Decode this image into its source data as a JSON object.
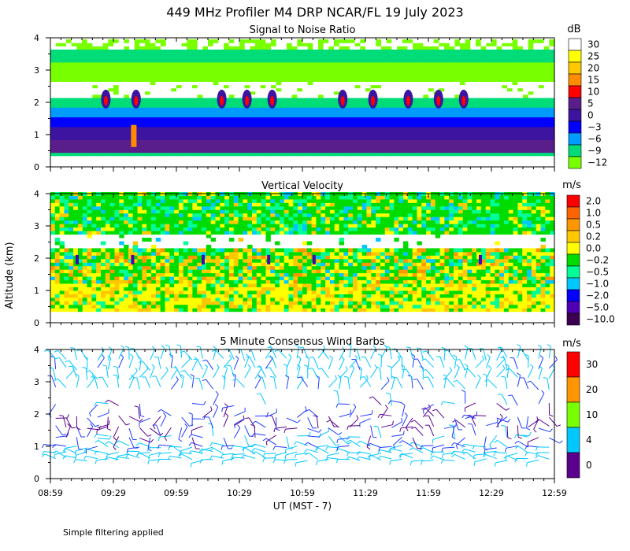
{
  "header": {
    "title": "449 MHz Profiler M4 DRP NCAR/FL 19 July 2023"
  },
  "ylabel": "Altitude (km)",
  "xlabel": "UT  (MST - 7)",
  "footer": "Simple filtering applied",
  "chart_data": [
    {
      "type": "heatmap",
      "title": "Signal to Noise Ratio",
      "unit": "dB",
      "ylim": [
        0,
        4
      ],
      "yticks": [
        "0",
        "1",
        "2",
        "3",
        "4"
      ],
      "xlim": [
        "08:59",
        "12:59"
      ],
      "xticks": [
        "08:59",
        "09:29",
        "09:59",
        "10:29",
        "10:59",
        "11:29",
        "11:59",
        "12:29",
        "12:59"
      ],
      "scale": {
        "labels": [
          "30",
          "25",
          "20",
          "15",
          "10",
          "5",
          "0",
          "−3",
          "−6",
          "−9",
          "−12"
        ],
        "colors": [
          "#ffffff",
          "#ffff00",
          "#ffc800",
          "#ff8c00",
          "#ff0000",
          "#5a1e8c",
          "#3c14a0",
          "#0000ff",
          "#009bff",
          "#00dc78",
          "#78ff00"
        ]
      },
      "profile": [
        {
          "altitude_km": 0.5,
          "value_db": 5
        },
        {
          "altitude_km": 0.8,
          "value_db": 3
        },
        {
          "altitude_km": 1.1,
          "value_db": 0
        },
        {
          "altitude_km": 1.4,
          "value_db": -3
        },
        {
          "altitude_km": 1.7,
          "value_db": -6
        },
        {
          "altitude_km": 2.0,
          "value_db": -9
        },
        {
          "altitude_km": 2.4,
          "value_db": 30
        },
        {
          "altitude_km": 3.0,
          "value_db": -12
        },
        {
          "altitude_km": 3.5,
          "value_db": -9
        },
        {
          "altitude_km": 3.9,
          "value_db": 30
        }
      ]
    },
    {
      "type": "heatmap",
      "title": "Vertical Velocity",
      "unit": "m/s",
      "ylim": [
        0,
        4
      ],
      "yticks": [
        "0",
        "1",
        "2",
        "3",
        "4"
      ],
      "xlim": [
        "08:59",
        "12:59"
      ],
      "scale": {
        "labels": [
          "2.0",
          "1.0",
          "0.5",
          "0.2",
          "0.0",
          "−0.2",
          "−0.5",
          "−1.0",
          "−2.0",
          "−5.0",
          "−10.0"
        ],
        "colors": [
          "#ff0000",
          "#ff6400",
          "#ff9600",
          "#ffc800",
          "#ffff00",
          "#00dc00",
          "#00ff96",
          "#00c8ff",
          "#0000ff",
          "#5000b4",
          "#3c0050"
        ]
      },
      "profile": [
        {
          "altitude_km": 0.7,
          "value_ms": 0.0
        },
        {
          "altitude_km": 1.2,
          "value_ms": 0.0
        },
        {
          "altitude_km": 1.8,
          "value_ms": 0.2
        },
        {
          "altitude_km": 2.4,
          "value_ms": null
        },
        {
          "altitude_km": 3.0,
          "value_ms": -0.2
        },
        {
          "altitude_km": 3.7,
          "value_ms": -0.2
        }
      ]
    },
    {
      "type": "wind_barbs",
      "title": "5 Minute Consensus Wind Barbs",
      "unit": "m/s",
      "ylim": [
        0,
        4
      ],
      "yticks": [
        "0",
        "1",
        "2",
        "3",
        "4"
      ],
      "xlim": [
        "08:59",
        "12:59"
      ],
      "scale": {
        "labels": [
          "30",
          "20",
          "10",
          "4",
          "0"
        ],
        "colors": [
          "#ff0000",
          "#ff9600",
          "#78ff00",
          "#00c8ff",
          "#5a008c"
        ]
      },
      "speed_bands": [
        {
          "altitude_km": 0.6,
          "speed_ms": 6
        },
        {
          "altitude_km": 0.8,
          "speed_ms": 8
        },
        {
          "altitude_km": 1.0,
          "speed_ms": 4
        },
        {
          "altitude_km": 1.3,
          "speed_ms": 3
        },
        {
          "altitude_km": 1.6,
          "speed_ms": 2
        },
        {
          "altitude_km": 1.9,
          "speed_ms": 2
        },
        {
          "altitude_km": 2.3,
          "speed_ms": 3
        },
        {
          "altitude_km": 2.8,
          "speed_ms": 5
        },
        {
          "altitude_km": 3.1,
          "speed_ms": 6
        },
        {
          "altitude_km": 3.4,
          "speed_ms": 5
        },
        {
          "altitude_km": 3.7,
          "speed_ms": 6
        }
      ]
    }
  ]
}
